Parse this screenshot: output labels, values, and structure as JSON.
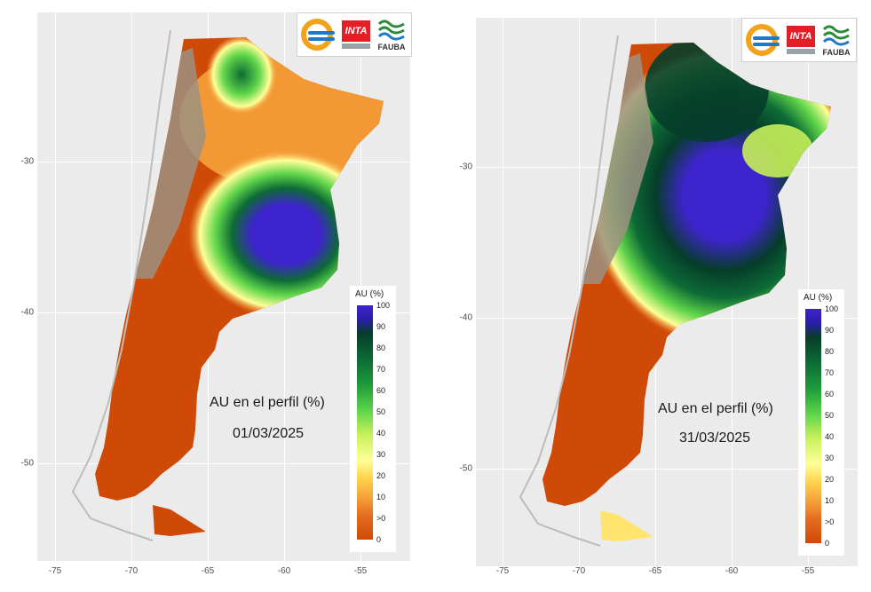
{
  "panels": [
    {
      "title": "AU en el perfil (%)",
      "date": "01/03/2025",
      "x_ticks": [
        "-75",
        "-70",
        "-65",
        "-60",
        "-55"
      ],
      "y_ticks": [
        "-30",
        "-40",
        "-50"
      ],
      "legend": {
        "title": "AU (%)",
        "labels": [
          "100",
          "90",
          "80",
          "70",
          "60",
          "50",
          "40",
          "30",
          "20",
          "10",
          ">0",
          "0"
        ]
      }
    },
    {
      "title": "AU en el perfil (%)",
      "date": "31/03/2025",
      "x_ticks": [
        "-75",
        "-70",
        "-65",
        "-60",
        "-55"
      ],
      "y_ticks": [
        "-30",
        "-40",
        "-50"
      ],
      "legend": {
        "title": "AU (%)",
        "labels": [
          "100",
          "90",
          "80",
          "70",
          "60",
          "50",
          "40",
          "30",
          "20",
          "10",
          ">0",
          "0"
        ]
      }
    }
  ],
  "logos": [
    "INTA",
    "FAUBA"
  ],
  "colors": {
    "dry": "#d04a07",
    "low": "#f5a23b",
    "mid": "#ffff99",
    "moist": "#5fd54a",
    "wet": "#0d6b35",
    "saturated": "#3d24cc",
    "mountain": "#9c9081",
    "background": "#ebebeb"
  }
}
